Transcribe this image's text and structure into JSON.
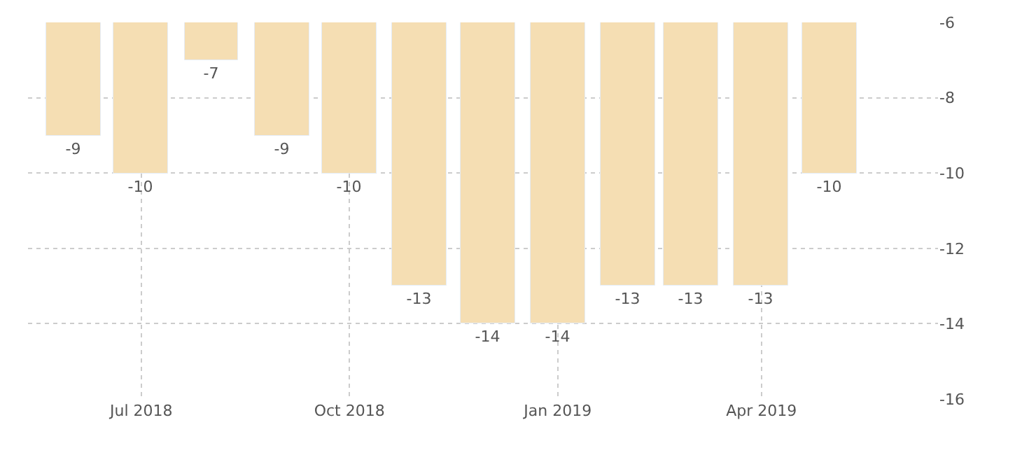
{
  "chart_data": {
    "type": "bar",
    "x": [
      "2018-06",
      "2018-07",
      "2018-08",
      "2018-09",
      "2018-10",
      "2018-11",
      "2018-12",
      "2019-01",
      "2019-02",
      "2019-03",
      "2019-04",
      "2019-05"
    ],
    "values": [
      -9,
      -10,
      -7,
      -9,
      -10,
      -13,
      -14,
      -14,
      -13,
      -13,
      -13,
      -10
    ],
    "color": "#f5deb3",
    "data_labels": true,
    "ylim": [
      -16,
      -6
    ],
    "yticks": [
      -16,
      -14,
      -12,
      -10,
      -8,
      -6
    ],
    "xlim": [
      "2018-05-12",
      "2019-06-18"
    ],
    "xticks": [
      {
        "value": "2018-07",
        "label": "Jul 2018"
      },
      {
        "value": "2018-10",
        "label": "Oct 2018"
      },
      {
        "value": "2019-01",
        "label": "Jan 2019"
      },
      {
        "value": "2019-04",
        "label": "Apr 2019"
      }
    ],
    "grid": true
  }
}
